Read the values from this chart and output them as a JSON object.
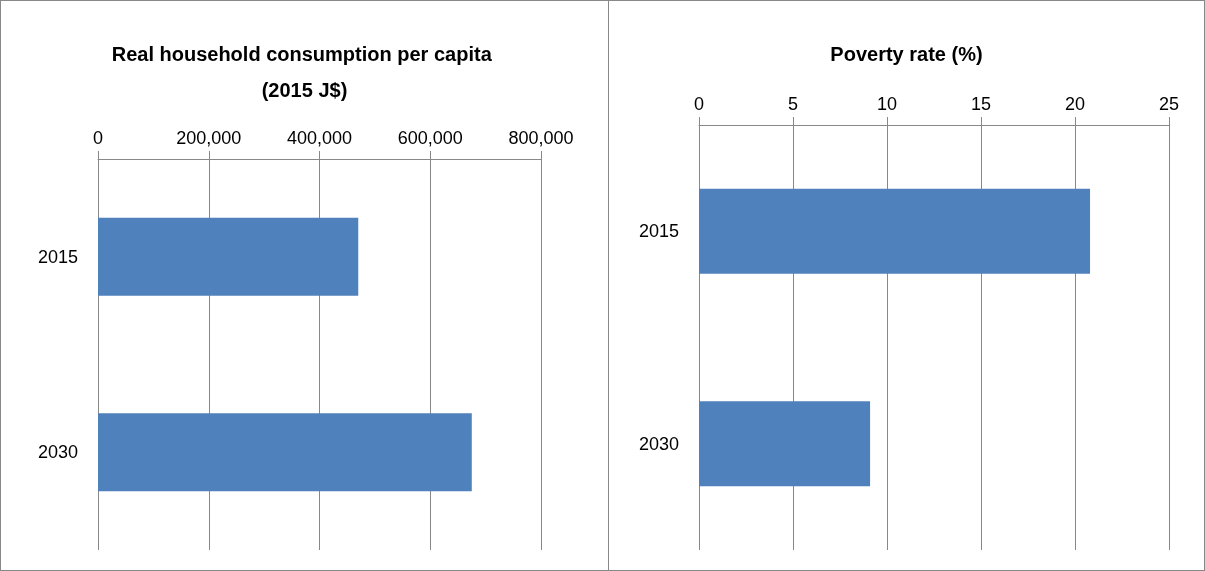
{
  "chart_data": [
    {
      "type": "bar",
      "orientation": "horizontal",
      "title": "Real household consumption per capita (2015 J$)",
      "categories": [
        "2015",
        "2030"
      ],
      "values": [
        470000,
        675000
      ],
      "color": "#4f81bd",
      "xlim": [
        0,
        800000
      ],
      "xticks": [
        0,
        {
          "value": 200000,
          "label": "200,000"
        },
        {
          "value": 400000,
          "label": "400,000"
        },
        {
          "value": 600000,
          "label": "600,000"
        },
        {
          "value": 800000,
          "label": "800,000"
        }
      ],
      "grid": "x"
    },
    {
      "type": "bar",
      "orientation": "horizontal",
      "title": "Poverty rate (%)",
      "categories": [
        "2015",
        "2030"
      ],
      "values": [
        20.8,
        9.1
      ],
      "color": "#4f81bd",
      "xlim": [
        0,
        25
      ],
      "xticks": [
        0,
        5,
        10,
        15,
        20,
        25
      ],
      "grid": "x"
    }
  ]
}
